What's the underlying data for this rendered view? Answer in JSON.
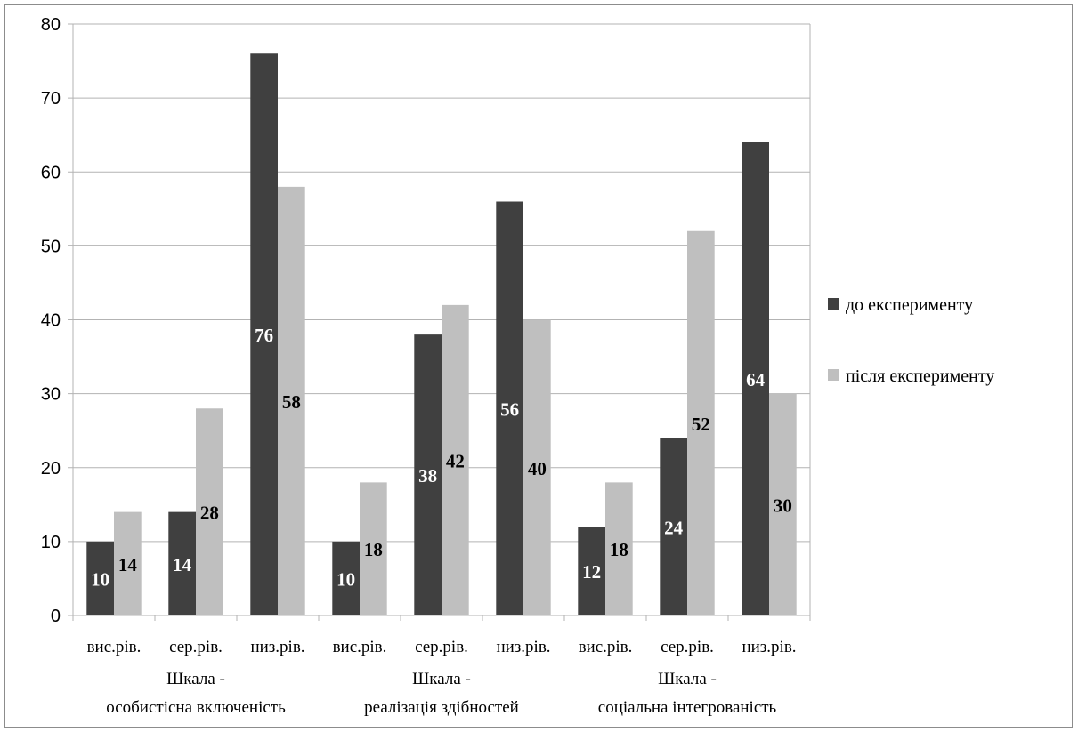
{
  "chart_data": {
    "type": "bar",
    "ylim": [
      0,
      80
    ],
    "yticks": [
      "0",
      "10",
      "20",
      "30",
      "40",
      "50",
      "60",
      "70",
      "80"
    ],
    "categories": [
      "вис.рів.",
      "сер.рів.",
      "низ.рів.",
      "вис.рів.",
      "сер.рів.",
      "низ.рів.",
      "вис.рів.",
      "сер.рів.",
      "низ.рів."
    ],
    "groups": [
      {
        "line1": "Шкала -",
        "line2": "особистісна включеність"
      },
      {
        "line1": "Шкала -",
        "line2": "реалізація здібностей"
      },
      {
        "line1": "Шкала -",
        "line2": "соціальна інтегрованість"
      }
    ],
    "series": [
      {
        "name": "до експерименту",
        "color": "#404040",
        "values": [
          10,
          14,
          76,
          10,
          38,
          56,
          12,
          24,
          64
        ]
      },
      {
        "name": "після експерименту",
        "color": "#bfbfbf",
        "values": [
          14,
          28,
          58,
          18,
          42,
          40,
          18,
          52,
          30
        ]
      }
    ],
    "grid": true,
    "legend": "right"
  }
}
